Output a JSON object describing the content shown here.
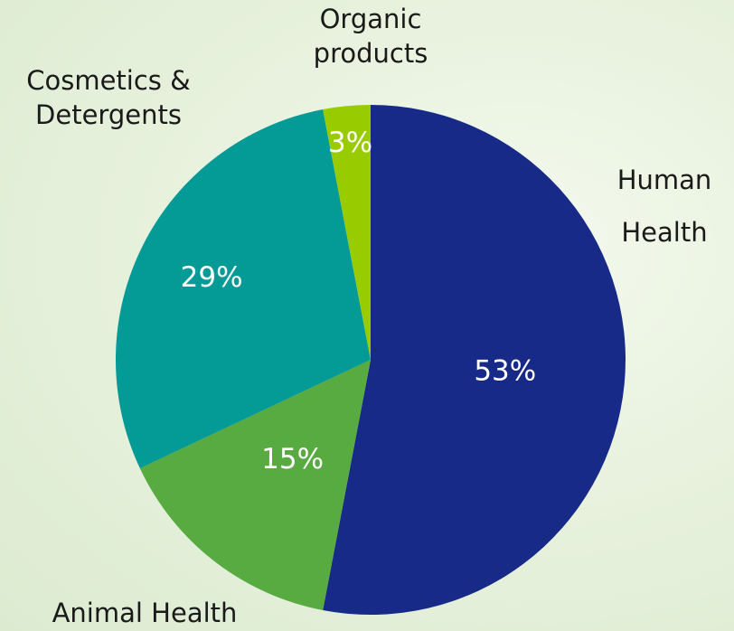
{
  "chart_data": {
    "type": "pie",
    "categories": [
      "Human Health",
      "Animal Health",
      "Cosmetics & Detergents",
      "Organic products"
    ],
    "values": [
      53,
      15,
      29,
      3
    ],
    "value_labels": [
      "53%",
      "15%",
      "29%",
      "3%"
    ],
    "colors": [
      "#172a87",
      "#58ab40",
      "#049a96",
      "#99cc00"
    ]
  }
}
